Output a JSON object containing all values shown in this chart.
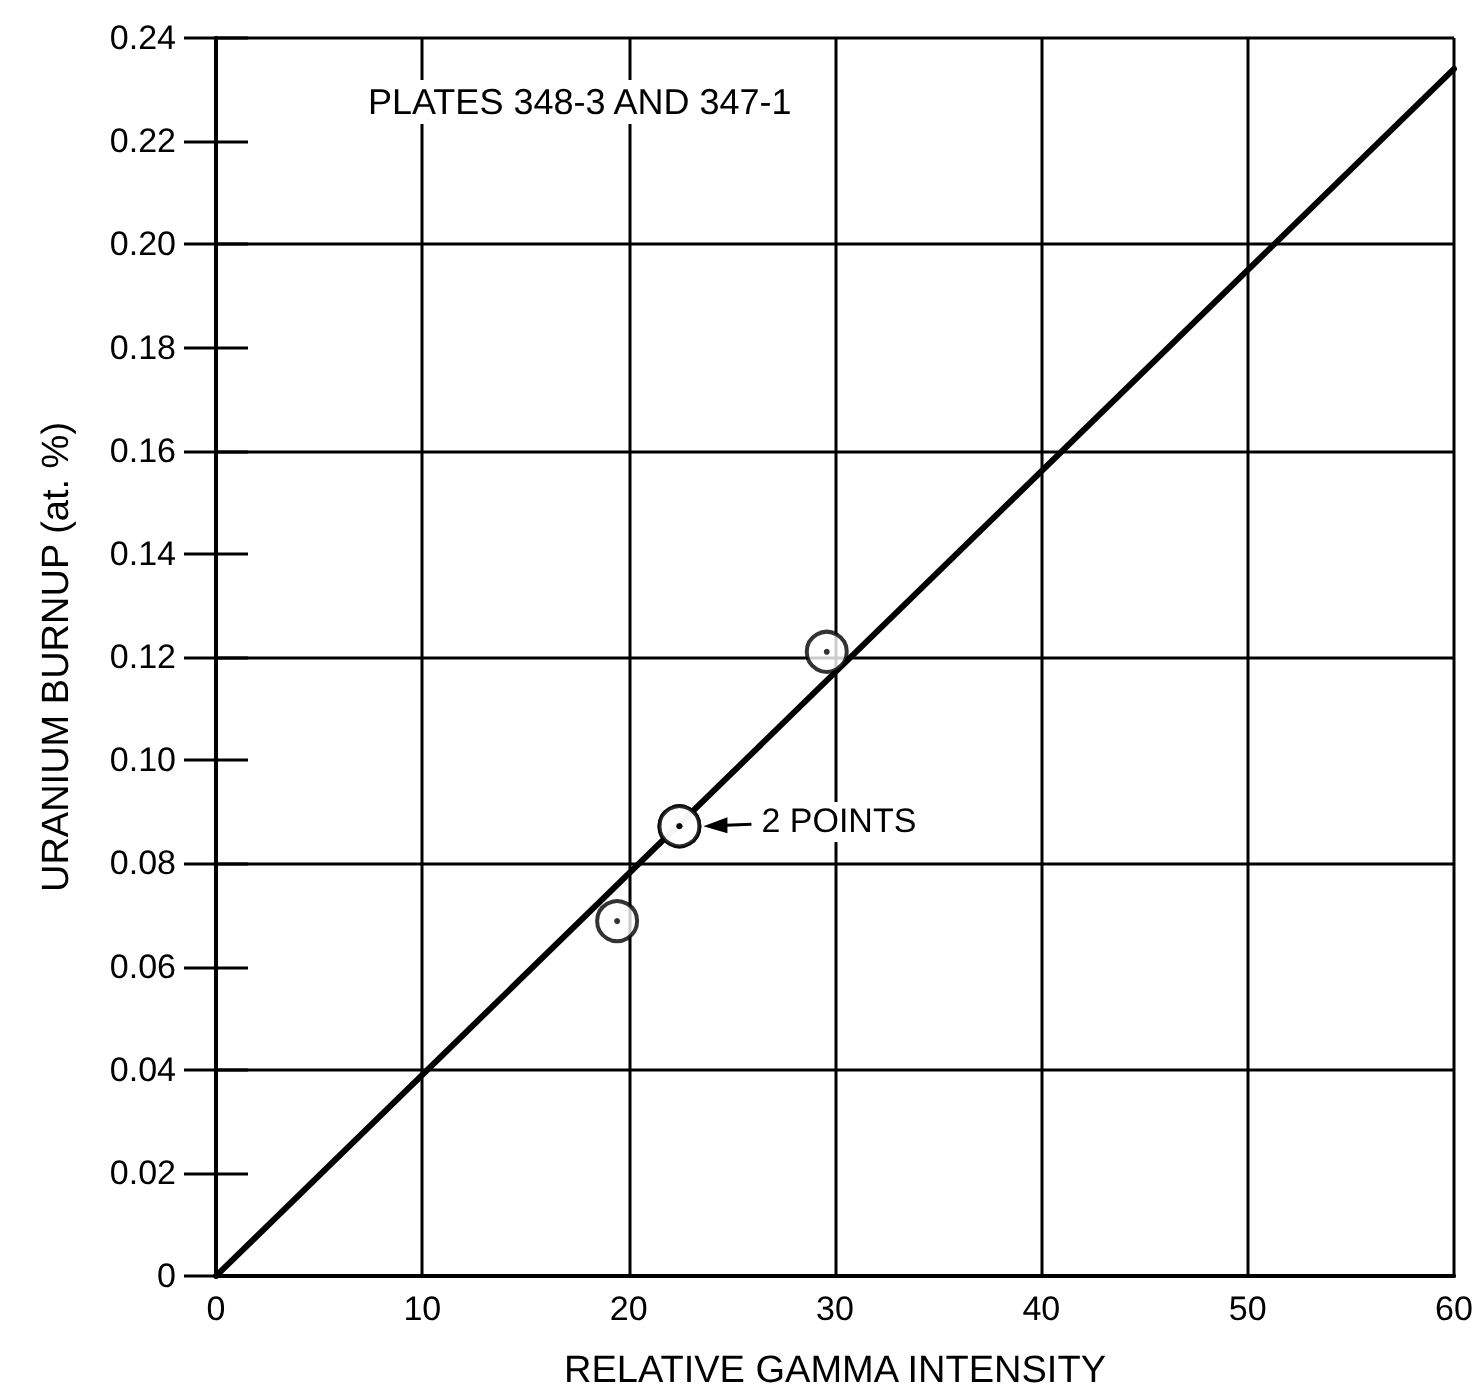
{
  "chart_data": {
    "type": "scatter",
    "xlabel": "RELATIVE GAMMA INTENSITY",
    "ylabel": "URANIUM BURNUP (at. %)",
    "annotations": [
      "PLATES 348-3 AND 347-1",
      {
        "text": "2 POINTS",
        "x": 22.46,
        "y": 0.0872
      }
    ],
    "series": [
      {
        "color": "#000000",
        "marker": "circle",
        "x": [
          19.44,
          22.46,
          22.46,
          29.6
        ],
        "values": [
          0.0688,
          0.0872,
          0.0872,
          0.121
        ]
      },
      {
        "type": "line",
        "color": "#000000",
        "marker": "none",
        "x": [
          0,
          60
        ],
        "values": [
          0,
          0.234
        ]
      }
    ],
    "xlim": [
      0,
      60
    ],
    "xticks": [
      0,
      10,
      20,
      30,
      40,
      50,
      60
    ],
    "ylim": [
      0,
      0.24
    ],
    "yticks": [
      0,
      {
        "value": 0.02,
        "label": "0.02"
      },
      {
        "value": 0.04,
        "label": "0.04"
      },
      {
        "value": 0.06,
        "label": "0.06"
      },
      {
        "value": 0.08,
        "label": "0.08"
      },
      {
        "value": 0.1,
        "label": "0.10"
      },
      {
        "value": 0.12,
        "label": "0.12"
      },
      {
        "value": 0.14,
        "label": "0.14"
      },
      {
        "value": 0.16,
        "label": "0.16"
      },
      {
        "value": 0.18,
        "label": "0.18"
      },
      {
        "value": 0.2,
        "label": "0.20"
      },
      {
        "value": 0.22,
        "label": "0.22"
      },
      {
        "value": 0.24,
        "label": "0.24"
      }
    ],
    "grid": true
  }
}
